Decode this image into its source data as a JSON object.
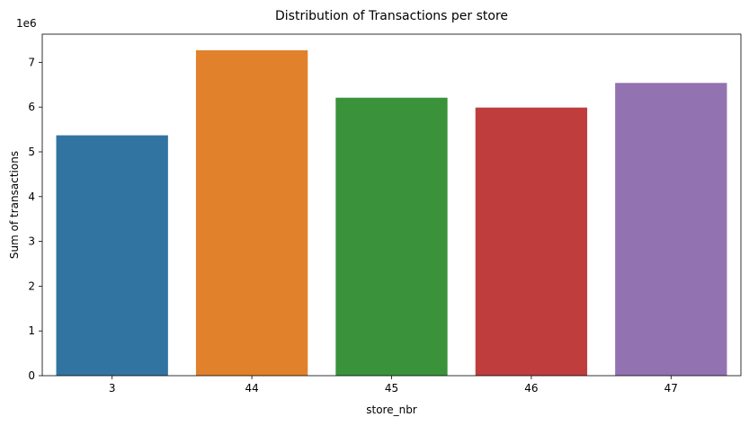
{
  "chart_data": {
    "type": "bar",
    "title": "Distribution of Transactions per store",
    "xlabel": "store_nbr",
    "ylabel": "Sum of transactions",
    "y_offset_label": "1e6",
    "categories": [
      "3",
      "44",
      "45",
      "46",
      "47"
    ],
    "values": [
      5370000,
      7270000,
      6210000,
      5990000,
      6540000
    ],
    "colors": [
      "#3274a1",
      "#e1812c",
      "#3a923a",
      "#c03d3e",
      "#9372b2"
    ],
    "yticks": [
      "0",
      "1",
      "2",
      "3",
      "4",
      "5",
      "6",
      "7"
    ],
    "ylim": [
      0,
      7630000
    ],
    "grid": false,
    "legend": "none"
  }
}
